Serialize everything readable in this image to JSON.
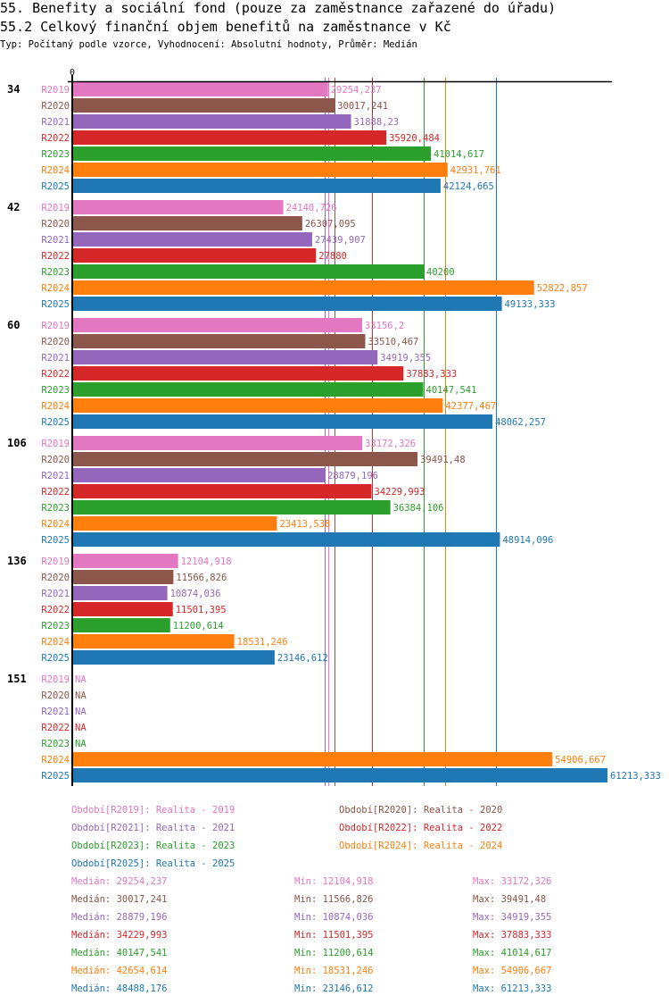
{
  "header": {
    "title": "55. Benefity a sociální fond (pouze za zaměstnance zařazené do úřadu)",
    "subtitle": "55.2 Celkový finanční objem benefitů na zaměstnance v Kč",
    "meta": "Typ: Počítaný podle vzorce, Vyhodnocení: Absolutní hodnoty, Průměr: Medián"
  },
  "chart_data": {
    "type": "bar",
    "orientation": "horizontal",
    "title": "55.2 Celkový finanční objem benefitů na zaměstnance v Kč",
    "xlabel": "",
    "ylabel": "",
    "axis_zero_label": "0",
    "xlim": [
      0,
      61213.333
    ],
    "grid": false,
    "legend_position": "bottom",
    "categories": [
      "34",
      "42",
      "60",
      "106",
      "136",
      "151"
    ],
    "series": [
      {
        "name": "R2019",
        "color": "#e377c2",
        "values": [
          29254.237,
          24140.726,
          33156.2,
          33172.326,
          12104.918,
          null
        ],
        "labels": [
          "29254,237",
          "24140,726",
          "33156,2",
          "33172,326",
          "12104,918",
          "NA"
        ]
      },
      {
        "name": "R2020",
        "color": "#8c564b",
        "values": [
          30017.241,
          26307.095,
          33510.467,
          39491.48,
          11566.826,
          null
        ],
        "labels": [
          "30017,241",
          "26307,095",
          "33510,467",
          "39491,48",
          "11566,826",
          "NA"
        ]
      },
      {
        "name": "R2021",
        "color": "#9467bd",
        "values": [
          31888.23,
          27439.907,
          34919.355,
          28879.196,
          10874.036,
          null
        ],
        "labels": [
          "31888,23",
          "27439,907",
          "34919,355",
          "28879,196",
          "10874,036",
          "NA"
        ]
      },
      {
        "name": "R2022",
        "color": "#d62728",
        "values": [
          35920.484,
          27880,
          37883.333,
          34229.993,
          11501.395,
          null
        ],
        "labels": [
          "35920,484",
          "27880",
          "37883,333",
          "34229,993",
          "11501,395",
          "NA"
        ]
      },
      {
        "name": "R2023",
        "color": "#2ca02c",
        "values": [
          41014.617,
          40200,
          40147.541,
          36384.106,
          11200.614,
          null
        ],
        "labels": [
          "41014,617",
          "40200",
          "40147,541",
          "36384,106",
          "11200,614",
          "NA"
        ]
      },
      {
        "name": "R2024",
        "color": "#ff7f0e",
        "values": [
          42931.761,
          52822.857,
          42377.467,
          23413.538,
          18531.246,
          54906.667
        ],
        "labels": [
          "42931,761",
          "52822,857",
          "42377,467",
          "23413,538",
          "18531,246",
          "54906,667"
        ]
      },
      {
        "name": "R2025",
        "color": "#1f77b4",
        "values": [
          42124.665,
          49133.333,
          48062.257,
          48914.096,
          23146.612,
          61213.333
        ],
        "labels": [
          "42124,665",
          "49133,333",
          "48062,257",
          "48914,096",
          "23146,612",
          "61213,333"
        ]
      }
    ],
    "medians": [
      {
        "series": "R2019",
        "value": 29254.237
      },
      {
        "series": "R2020",
        "value": 30017.241
      },
      {
        "series": "R2021",
        "value": 28879.196
      },
      {
        "series": "R2022",
        "value": 34229.993
      },
      {
        "series": "R2023",
        "value": 40147.541
      },
      {
        "series": "R2024",
        "value": 42654.614
      },
      {
        "series": "R2025",
        "value": 48488.176
      }
    ],
    "legend": [
      {
        "text": "Období[R2019]: Realita - 2019",
        "color": "#e377c2"
      },
      {
        "text": "Období[R2020]: Realita - 2020",
        "color": "#8c564b"
      },
      {
        "text": "Období[R2021]: Realita - 2021",
        "color": "#9467bd"
      },
      {
        "text": "Období[R2022]: Realita - 2022",
        "color": "#d62728"
      },
      {
        "text": "Období[R2023]: Realita - 2023",
        "color": "#2ca02c"
      },
      {
        "text": "Období[R2024]: Realita - 2024",
        "color": "#ff7f0e"
      },
      {
        "text": "Období[R2025]: Realita - 2025",
        "color": "#1f77b4"
      }
    ],
    "stats": [
      {
        "median": "Medián: 29254,237",
        "min": "Min: 12104,918",
        "max": "Max: 33172,326",
        "color": "#e377c2"
      },
      {
        "median": "Medián: 30017,241",
        "min": "Min: 11566,826",
        "max": "Max: 39491,48",
        "color": "#8c564b"
      },
      {
        "median": "Medián: 28879,196",
        "min": "Min: 10874,036",
        "max": "Max: 34919,355",
        "color": "#9467bd"
      },
      {
        "median": "Medián: 34229,993",
        "min": "Min: 11501,395",
        "max": "Max: 37883,333",
        "color": "#d62728"
      },
      {
        "median": "Medián: 40147,541",
        "min": "Min: 11200,614",
        "max": "Max: 41014,617",
        "color": "#2ca02c"
      },
      {
        "median": "Medián: 42654,614",
        "min": "Min: 18531,246",
        "max": "Max: 54906,667",
        "color": "#ff7f0e"
      },
      {
        "median": "Medián: 48488,176",
        "min": "Min: 23146,612",
        "max": "Max: 61213,333",
        "color": "#1f77b4"
      }
    ]
  }
}
